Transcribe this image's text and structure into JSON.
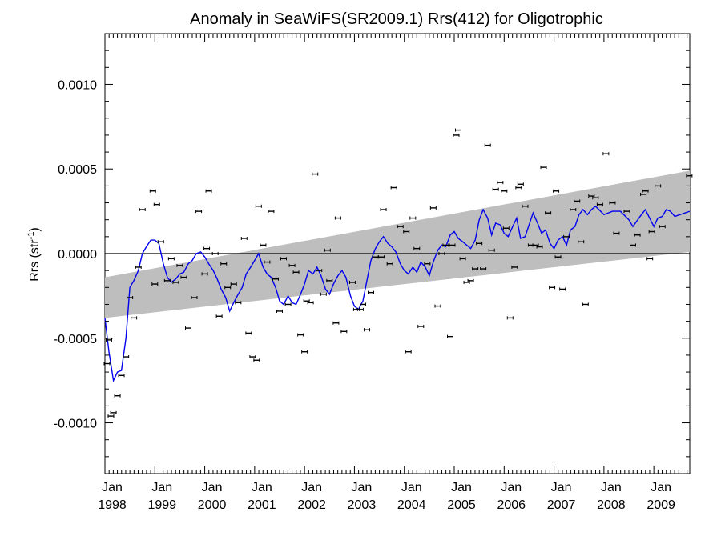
{
  "chart_data": {
    "type": "line",
    "title": "Anomaly in SeaWiFS(SR2009.1) Rrs(412) for Oligotrophic",
    "ylabel": {
      "base": "Rrs (str",
      "sup": "-1",
      "close": ")"
    },
    "xlim": [
      1998.0,
      2009.72
    ],
    "ylim": [
      -0.0013,
      0.0013
    ],
    "yticks": [
      {
        "value": -0.001,
        "label": "-0.0010"
      },
      {
        "value": -0.0005,
        "label": "-0.0005"
      },
      {
        "value": 0.0,
        "label": "0.0000"
      },
      {
        "value": 0.0005,
        "label": "0.0005"
      },
      {
        "value": 0.001,
        "label": "0.0010"
      }
    ],
    "xticks": [
      {
        "value": 1998,
        "line1": "Jan",
        "line2": "1998"
      },
      {
        "value": 1999,
        "line1": "Jan",
        "line2": "1999"
      },
      {
        "value": 2000,
        "line1": "Jan",
        "line2": "2000"
      },
      {
        "value": 2001,
        "line1": "Jan",
        "line2": "2001"
      },
      {
        "value": 2002,
        "line1": "Jan",
        "line2": "2002"
      },
      {
        "value": 2003,
        "line1": "Jan",
        "line2": "2003"
      },
      {
        "value": 2004,
        "line1": "Jan",
        "line2": "2004"
      },
      {
        "value": 2005,
        "line1": "Jan",
        "line2": "2005"
      },
      {
        "value": 2006,
        "line1": "Jan",
        "line2": "2006"
      },
      {
        "value": 2007,
        "line1": "Jan",
        "line2": "2007"
      },
      {
        "value": 2008,
        "line1": "Jan",
        "line2": "2008"
      },
      {
        "value": 2009,
        "line1": "Jan",
        "line2": "2009"
      }
    ],
    "zero_line": 0.0,
    "confidence_band": {
      "color": "#bebebe",
      "x": [
        1998.0,
        2009.72
      ],
      "upper": [
        -0.00014,
        0.00049
      ],
      "lower": [
        -0.00038,
        1e-05
      ]
    },
    "smoothed_series": {
      "color": "#0000ee",
      "points": [
        [
          1998.0,
          -0.00038
        ],
        [
          1998.08,
          -0.00058
        ],
        [
          1998.17,
          -0.00075
        ],
        [
          1998.25,
          -0.0007
        ],
        [
          1998.33,
          -0.00069
        ],
        [
          1998.42,
          -0.0005
        ],
        [
          1998.5,
          -0.0002
        ],
        [
          1998.58,
          -0.00016
        ],
        [
          1998.67,
          -0.0001
        ],
        [
          1998.75,
          0.0
        ],
        [
          1998.83,
          4e-05
        ],
        [
          1998.92,
          8e-05
        ],
        [
          1999.0,
          8e-05
        ],
        [
          1999.08,
          6e-05
        ],
        [
          1999.17,
          -6e-05
        ],
        [
          1999.25,
          -0.00014
        ],
        [
          1999.33,
          -0.00017
        ],
        [
          1999.42,
          -0.00015
        ],
        [
          1999.5,
          -0.00012
        ],
        [
          1999.58,
          -0.00011
        ],
        [
          1999.67,
          -6e-05
        ],
        [
          1999.75,
          -4e-05
        ],
        [
          1999.83,
          0.0
        ],
        [
          1999.92,
          1e-05
        ],
        [
          2000.0,
          -2e-05
        ],
        [
          2000.08,
          -6e-05
        ],
        [
          2000.17,
          -0.0001
        ],
        [
          2000.25,
          -0.00015
        ],
        [
          2000.33,
          -0.00021
        ],
        [
          2000.42,
          -0.00026
        ],
        [
          2000.5,
          -0.00034
        ],
        [
          2000.58,
          -0.00029
        ],
        [
          2000.67,
          -0.00024
        ],
        [
          2000.75,
          -0.0002
        ],
        [
          2000.83,
          -0.00012
        ],
        [
          2000.92,
          -8e-05
        ],
        [
          2001.0,
          -4e-05
        ],
        [
          2001.08,
          0.0
        ],
        [
          2001.17,
          -8e-05
        ],
        [
          2001.25,
          -0.00012
        ],
        [
          2001.33,
          -0.00014
        ],
        [
          2001.42,
          -0.0002
        ],
        [
          2001.5,
          -0.00028
        ],
        [
          2001.58,
          -0.0003
        ],
        [
          2001.67,
          -0.00025
        ],
        [
          2001.75,
          -0.00029
        ],
        [
          2001.83,
          -0.0003
        ],
        [
          2001.92,
          -0.00024
        ],
        [
          2002.0,
          -0.00018
        ],
        [
          2002.08,
          -0.0001
        ],
        [
          2002.17,
          -0.00012
        ],
        [
          2002.25,
          -8e-05
        ],
        [
          2002.33,
          -0.00013
        ],
        [
          2002.42,
          -0.00021
        ],
        [
          2002.5,
          -0.00024
        ],
        [
          2002.58,
          -0.00018
        ],
        [
          2002.67,
          -0.00013
        ],
        [
          2002.75,
          -0.0001
        ],
        [
          2002.83,
          -0.00014
        ],
        [
          2002.92,
          -0.00025
        ],
        [
          2003.0,
          -0.00031
        ],
        [
          2003.08,
          -0.00033
        ],
        [
          2003.17,
          -0.00028
        ],
        [
          2003.25,
          -0.00016
        ],
        [
          2003.33,
          -4e-05
        ],
        [
          2003.42,
          3e-05
        ],
        [
          2003.5,
          7e-05
        ],
        [
          2003.58,
          0.0001
        ],
        [
          2003.67,
          6e-05
        ],
        [
          2003.75,
          4e-05
        ],
        [
          2003.83,
          1e-05
        ],
        [
          2003.92,
          -6e-05
        ],
        [
          2004.0,
          -0.0001
        ],
        [
          2004.08,
          -0.00012
        ],
        [
          2004.17,
          -8e-05
        ],
        [
          2004.25,
          -0.00011
        ],
        [
          2004.33,
          -5e-05
        ],
        [
          2004.42,
          -8e-05
        ],
        [
          2004.5,
          -0.00013
        ],
        [
          2004.58,
          -5e-05
        ],
        [
          2004.67,
          2e-05
        ],
        [
          2004.75,
          5e-05
        ],
        [
          2004.83,
          4e-05
        ],
        [
          2004.92,
          0.00011
        ],
        [
          2005.0,
          0.00013
        ],
        [
          2005.08,
          9e-05
        ],
        [
          2005.17,
          7e-05
        ],
        [
          2005.25,
          5e-05
        ],
        [
          2005.33,
          3e-05
        ],
        [
          2005.42,
          8e-05
        ],
        [
          2005.5,
          0.0002
        ],
        [
          2005.58,
          0.00026
        ],
        [
          2005.67,
          0.00021
        ],
        [
          2005.75,
          0.00011
        ],
        [
          2005.83,
          0.00018
        ],
        [
          2005.92,
          0.00017
        ],
        [
          2006.0,
          0.00012
        ],
        [
          2006.08,
          0.0001
        ],
        [
          2006.17,
          0.00016
        ],
        [
          2006.25,
          0.00021
        ],
        [
          2006.33,
          9e-05
        ],
        [
          2006.42,
          0.0001
        ],
        [
          2006.5,
          0.00017
        ],
        [
          2006.58,
          0.00024
        ],
        [
          2006.67,
          0.00018
        ],
        [
          2006.75,
          0.00012
        ],
        [
          2006.83,
          0.00014
        ],
        [
          2006.92,
          6e-05
        ],
        [
          2007.0,
          3e-05
        ],
        [
          2007.08,
          8e-05
        ],
        [
          2007.17,
          0.0001
        ],
        [
          2007.25,
          5e-05
        ],
        [
          2007.33,
          0.00014
        ],
        [
          2007.42,
          0.00016
        ],
        [
          2007.5,
          0.00023
        ],
        [
          2007.58,
          0.00026
        ],
        [
          2007.67,
          0.00023
        ],
        [
          2007.75,
          0.00026
        ],
        [
          2007.83,
          0.00028
        ],
        [
          2008.0,
          0.00023
        ],
        [
          2008.17,
          0.00025
        ],
        [
          2008.33,
          0.00025
        ],
        [
          2008.5,
          0.0002
        ],
        [
          2008.58,
          0.00016
        ],
        [
          2008.75,
          0.00023
        ],
        [
          2008.83,
          0.00026
        ],
        [
          2009.0,
          0.00016
        ],
        [
          2009.08,
          0.00021
        ],
        [
          2009.17,
          0.00022
        ],
        [
          2009.25,
          0.00026
        ],
        [
          2009.33,
          0.00025
        ],
        [
          2009.42,
          0.00022
        ],
        [
          2009.72,
          0.00025
        ]
      ]
    },
    "monthly_points": [
      [
        1998.04,
        -0.00065
      ],
      [
        1998.08,
        -0.00051
      ],
      [
        1998.12,
        -0.00096
      ],
      [
        1998.17,
        -0.00094
      ],
      [
        1998.25,
        -0.00084
      ],
      [
        1998.33,
        -0.00072
      ],
      [
        1998.42,
        -0.00061
      ],
      [
        1998.5,
        -0.00026
      ],
      [
        1998.58,
        -0.00038
      ],
      [
        1998.67,
        -8e-05
      ],
      [
        1998.75,
        0.00026
      ],
      [
        1998.96,
        0.00037
      ],
      [
        1999.0,
        -0.00018
      ],
      [
        1999.04,
        0.00029
      ],
      [
        1999.12,
        7e-05
      ],
      [
        1999.25,
        -0.00016
      ],
      [
        1999.33,
        -3e-05
      ],
      [
        1999.42,
        -0.00017
      ],
      [
        1999.5,
        -7e-05
      ],
      [
        1999.58,
        -0.00014
      ],
      [
        1999.67,
        -0.00044
      ],
      [
        1999.79,
        -0.00026
      ],
      [
        1999.88,
        0.00025
      ],
      [
        2000.0,
        -0.00012
      ],
      [
        2000.04,
        3e-05
      ],
      [
        2000.08,
        0.00037
      ],
      [
        2000.21,
        0.0
      ],
      [
        2000.29,
        -0.00037
      ],
      [
        2000.38,
        -6e-05
      ],
      [
        2000.46,
        -0.0002
      ],
      [
        2000.58,
        -0.00018
      ],
      [
        2000.67,
        -0.00029
      ],
      [
        2000.79,
        9e-05
      ],
      [
        2000.88,
        -0.00047
      ],
      [
        2000.96,
        -0.00061
      ],
      [
        2001.04,
        -0.00063
      ],
      [
        2001.08,
        0.00028
      ],
      [
        2001.17,
        5e-05
      ],
      [
        2001.25,
        -5e-05
      ],
      [
        2001.33,
        0.00025
      ],
      [
        2001.42,
        -0.00015
      ],
      [
        2001.5,
        -0.00034
      ],
      [
        2001.58,
        -3e-05
      ],
      [
        2001.67,
        -0.0003
      ],
      [
        2001.75,
        -7e-05
      ],
      [
        2001.83,
        -0.00011
      ],
      [
        2001.92,
        -0.00048
      ],
      [
        2002.0,
        -0.00058
      ],
      [
        2002.04,
        -0.00028
      ],
      [
        2002.12,
        -0.00029
      ],
      [
        2002.21,
        0.00047
      ],
      [
        2002.29,
        -0.0001
      ],
      [
        2002.38,
        -0.00024
      ],
      [
        2002.46,
        2e-05
      ],
      [
        2002.5,
        -0.00016
      ],
      [
        2002.63,
        -0.00041
      ],
      [
        2002.67,
        0.00021
      ],
      [
        2002.79,
        -0.00046
      ],
      [
        2002.96,
        -0.00017
      ],
      [
        2003.04,
        -0.00033
      ],
      [
        2003.12,
        -0.00033
      ],
      [
        2003.17,
        -0.0003
      ],
      [
        2003.25,
        -0.00045
      ],
      [
        2003.33,
        -0.00023
      ],
      [
        2003.42,
        -2e-05
      ],
      [
        2003.54,
        -2e-05
      ],
      [
        2003.58,
        0.00026
      ],
      [
        2003.71,
        -6e-05
      ],
      [
        2003.79,
        0.00039
      ],
      [
        2003.92,
        0.00016
      ],
      [
        2004.04,
        0.00013
      ],
      [
        2004.08,
        -0.00058
      ],
      [
        2004.17,
        0.00021
      ],
      [
        2004.25,
        3e-05
      ],
      [
        2004.33,
        -0.00043
      ],
      [
        2004.46,
        -6e-05
      ],
      [
        2004.58,
        0.00027
      ],
      [
        2004.67,
        -0.00031
      ],
      [
        2004.75,
        0.0
      ],
      [
        2004.83,
        5e-05
      ],
      [
        2004.92,
        -0.00049
      ],
      [
        2004.96,
        5e-05
      ],
      [
        2005.04,
        0.0007
      ],
      [
        2005.08,
        0.00073
      ],
      [
        2005.17,
        -3e-05
      ],
      [
        2005.25,
        -0.00017
      ],
      [
        2005.33,
        -0.00016
      ],
      [
        2005.42,
        -9e-05
      ],
      [
        2005.5,
        6e-05
      ],
      [
        2005.58,
        -9e-05
      ],
      [
        2005.67,
        0.00064
      ],
      [
        2005.75,
        2e-05
      ],
      [
        2005.83,
        0.00038
      ],
      [
        2005.92,
        0.00042
      ],
      [
        2006.0,
        0.00037
      ],
      [
        2006.04,
        0.00015
      ],
      [
        2006.12,
        -0.00038
      ],
      [
        2006.21,
        -8e-05
      ],
      [
        2006.29,
        0.00039
      ],
      [
        2006.33,
        0.00041
      ],
      [
        2006.42,
        0.00028
      ],
      [
        2006.54,
        5e-05
      ],
      [
        2006.63,
        5e-05
      ],
      [
        2006.71,
        4e-05
      ],
      [
        2006.79,
        0.00051
      ],
      [
        2006.88,
        0.00024
      ],
      [
        2006.96,
        -0.0002
      ],
      [
        2007.04,
        0.00037
      ],
      [
        2007.08,
        -2e-05
      ],
      [
        2007.17,
        -0.00021
      ],
      [
        2007.25,
        0.0001
      ],
      [
        2007.38,
        0.00026
      ],
      [
        2007.46,
        0.00031
      ],
      [
        2007.54,
        7e-05
      ],
      [
        2007.63,
        -0.0003
      ],
      [
        2007.75,
        0.00034
      ],
      [
        2007.83,
        0.00033
      ],
      [
        2007.92,
        0.00029
      ],
      [
        2008.04,
        0.00059
      ],
      [
        2008.17,
        0.0003
      ],
      [
        2008.25,
        0.00012
      ],
      [
        2008.46,
        0.00025
      ],
      [
        2008.58,
        5e-05
      ],
      [
        2008.67,
        0.00011
      ],
      [
        2008.79,
        0.00035
      ],
      [
        2008.83,
        0.00037
      ],
      [
        2008.92,
        -3e-05
      ],
      [
        2008.96,
        0.00013
      ],
      [
        2009.08,
        0.0004
      ],
      [
        2009.17,
        0.00016
      ],
      [
        2009.71,
        0.00046
      ]
    ]
  }
}
